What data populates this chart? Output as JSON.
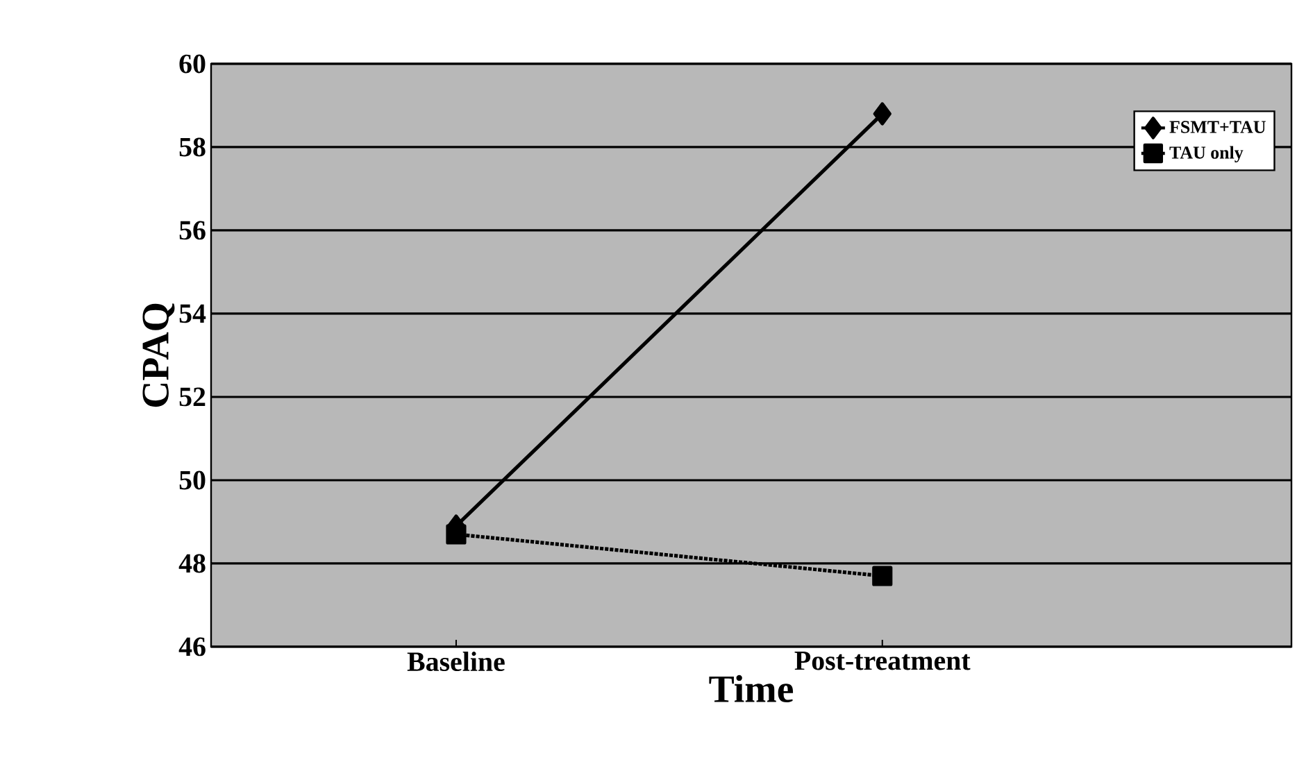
{
  "chart_data": {
    "type": "line",
    "xlabel": "Time",
    "ylabel": "CPAQ",
    "categories": [
      "Baseline",
      "Post-treatment"
    ],
    "series": [
      {
        "name": "FSMT+TAU",
        "color": "#000000",
        "values": [
          48.9,
          58.8
        ],
        "marker": "diamond",
        "line_style": "solid"
      },
      {
        "name": "TAU only",
        "color": "#000000",
        "values": [
          48.7,
          47.7
        ],
        "marker": "square",
        "line_style": "dotted"
      }
    ],
    "ylim": [
      46,
      60
    ],
    "yticks": [
      46,
      48,
      50,
      52,
      54,
      56,
      58,
      60
    ],
    "grid": "y",
    "legend": "top right"
  }
}
